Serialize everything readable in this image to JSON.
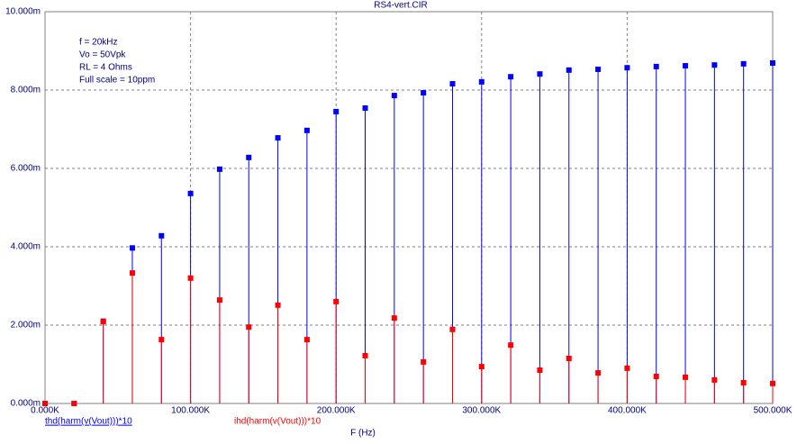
{
  "chart_data": {
    "type": "stem",
    "title": "RS4-vert.CIR",
    "x_label": "F (Hz)",
    "annotations": [
      "f = 20kHz",
      "Vo = 50Vpk",
      "RL = 4 Ohms",
      "Full scale = 10ppm"
    ],
    "x": [
      0,
      20000,
      40000,
      60000,
      80000,
      100000,
      120000,
      140000,
      160000,
      180000,
      200000,
      220000,
      240000,
      260000,
      280000,
      300000,
      320000,
      340000,
      360000,
      380000,
      400000,
      420000,
      440000,
      460000,
      480000,
      500000
    ],
    "series": [
      {
        "name": "thd(harm(v(Vout)))*10",
        "color": "#0000ff",
        "values": [
          0,
          0,
          2.1,
          3.97,
          4.28,
          5.36,
          5.98,
          6.28,
          6.78,
          6.97,
          7.45,
          7.54,
          7.86,
          7.93,
          8.16,
          8.21,
          8.34,
          8.41,
          8.51,
          8.53,
          8.57,
          8.6,
          8.62,
          8.64,
          8.67,
          8.69
        ]
      },
      {
        "name": "ihd(harm(v(Vout)))*10",
        "color": "#ff0000",
        "values": [
          0,
          0,
          2.09,
          3.33,
          1.63,
          3.2,
          2.64,
          1.95,
          2.51,
          1.63,
          2.6,
          1.22,
          2.18,
          1.06,
          1.89,
          0.94,
          1.49,
          0.85,
          1.15,
          0.78,
          0.9,
          0.69,
          0.67,
          0.6,
          0.53,
          0.51
        ]
      }
    ],
    "xlim": [
      0,
      500000
    ],
    "xticks": [
      {
        "value": 0,
        "label": "0.000K"
      },
      {
        "value": 100000,
        "label": "100.000K"
      },
      {
        "value": 200000,
        "label": "200.000K"
      },
      {
        "value": 300000,
        "label": "300.000K"
      },
      {
        "value": 400000,
        "label": "400.000K"
      },
      {
        "value": 500000,
        "label": "500.000K"
      }
    ],
    "ylim": [
      0,
      10
    ],
    "yticks": [
      {
        "value": 0,
        "label": "0.000m"
      },
      {
        "value": 2,
        "label": "2.000m"
      },
      {
        "value": 4,
        "label": "4.000m"
      },
      {
        "value": 6,
        "label": "6.000m"
      },
      {
        "value": 8,
        "label": "8.000m"
      },
      {
        "value": 10,
        "label": "10.000m"
      }
    ],
    "grid": true
  }
}
